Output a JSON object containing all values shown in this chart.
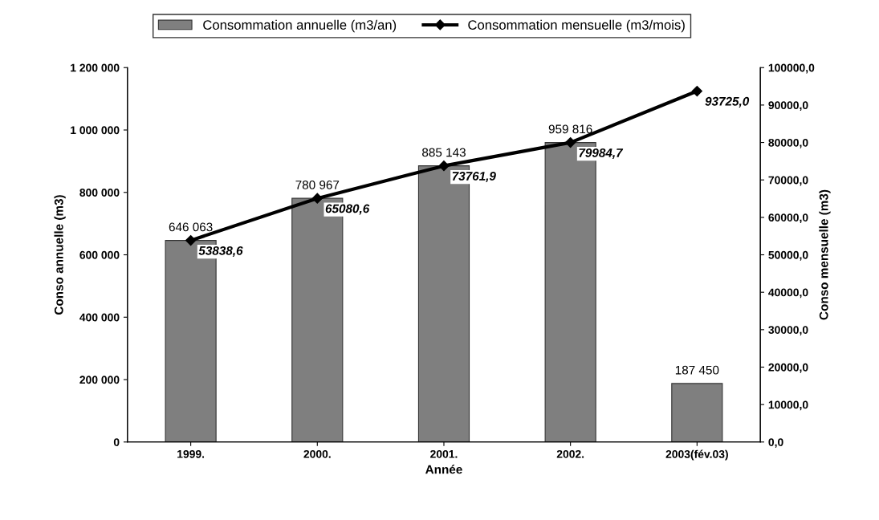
{
  "chart_data": {
    "type": "bar",
    "xlabel": "Année",
    "ylabel": "Conso annuelle (m3)",
    "y2label": "Conso mensuelle (m3)",
    "categories": [
      "1999.",
      "2000.",
      "2001.",
      "2002.",
      "2003(fév.03)"
    ],
    "series": [
      {
        "name": "Consommation annuelle (m3/an)",
        "color": "#7f7f7f",
        "values": [
          646063,
          780967,
          885143,
          959816,
          187450
        ],
        "value_labels": [
          "646 063",
          "780 967",
          "885 143",
          "959 816",
          "187 450"
        ]
      },
      {
        "name": "Consommation mensuelle (m3/mois)",
        "type": "line",
        "axis": "y2",
        "color": "#000000",
        "marker": "diamond",
        "values": [
          53838.6,
          65080.6,
          73761.9,
          79984.7,
          93725.0
        ],
        "value_labels": [
          "53838,6",
          "65080,6",
          "73761,9",
          "79984,7",
          "93725,0"
        ]
      }
    ],
    "ylim": [
      0,
      1200000
    ],
    "yticks": [
      {
        "value": 0,
        "label": "0"
      },
      {
        "value": 200000,
        "label": "200 000"
      },
      {
        "value": 400000,
        "label": "400 000"
      },
      {
        "value": 600000,
        "label": "600 000"
      },
      {
        "value": 800000,
        "label": "800 000"
      },
      {
        "value": 1000000,
        "label": "1 000 000"
      },
      {
        "value": 1200000,
        "label": "1 200 000"
      }
    ],
    "y2lim": [
      0,
      100000
    ],
    "y2ticks": [
      {
        "value": 0,
        "label": "0,0"
      },
      {
        "value": 10000,
        "label": "10000,0"
      },
      {
        "value": 20000,
        "label": "20000,0"
      },
      {
        "value": 30000,
        "label": "30000,0"
      },
      {
        "value": 40000,
        "label": "40000,0"
      },
      {
        "value": 50000,
        "label": "50000,0"
      },
      {
        "value": 60000,
        "label": "60000,0"
      },
      {
        "value": 70000,
        "label": "70000,0"
      },
      {
        "value": 80000,
        "label": "80000,0"
      },
      {
        "value": 90000,
        "label": "90000,0"
      },
      {
        "value": 100000,
        "label": "100000,0"
      }
    ],
    "grid": false,
    "legend": "top"
  }
}
